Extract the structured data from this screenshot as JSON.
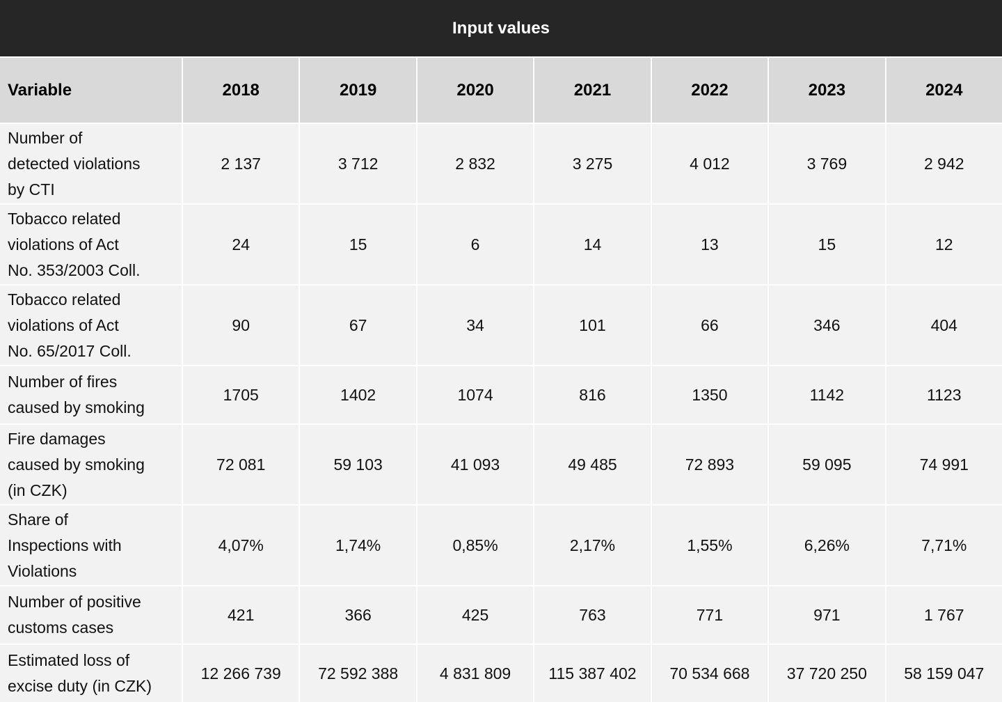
{
  "title": "Input values",
  "colors": {
    "title_bar_bg": "#262626",
    "title_text": "#ffffff",
    "header_bg": "#d9d9d9",
    "row_bg": "#f2f2f2",
    "grid_line": "#ffffff"
  },
  "table": {
    "variable_header": "Variable",
    "year_headers": [
      "2018",
      "2019",
      "2020",
      "2021",
      "2022",
      "2023",
      "2024"
    ],
    "rows": [
      {
        "label": "Number of\ndetected violations\nby CTI",
        "values": [
          "2 137",
          "3 712",
          "2 832",
          "3 275",
          "4 012",
          "3 769",
          "2 942"
        ]
      },
      {
        "label": "Tobacco related\nviolations of Act\nNo. 353/2003 Coll.",
        "values": [
          "24",
          "15",
          "6",
          "14",
          "13",
          "15",
          "12"
        ]
      },
      {
        "label": "Tobacco related\nviolations of Act\nNo. 65/2017 Coll.",
        "values": [
          "90",
          "67",
          "34",
          "101",
          "66",
          "346",
          "404"
        ]
      },
      {
        "label": "Number of fires\ncaused by smoking",
        "values": [
          "1705",
          "1402",
          "1074",
          "816",
          "1350",
          "1142",
          "1123"
        ]
      },
      {
        "label": "Fire damages\ncaused by smoking\n(in CZK)",
        "values": [
          "72 081",
          "59 103",
          "41 093",
          "49 485",
          "72 893",
          "59 095",
          "74 991"
        ]
      },
      {
        "label": "Share of\nInspections with\nViolations",
        "values": [
          "4,07%",
          "1,74%",
          "0,85%",
          "2,17%",
          "1,55%",
          "6,26%",
          "7,71%"
        ]
      },
      {
        "label": "Number of positive\ncustoms cases",
        "values": [
          "421",
          "366",
          "425",
          "763",
          "771",
          "971",
          "1 767"
        ]
      },
      {
        "label": "Estimated loss of\nexcise duty (in CZK)",
        "values": [
          "12 266 739",
          "72 592 388",
          "4 831 809",
          "115 387 402",
          "70 534 668",
          "37 720 250",
          "58 159 047"
        ]
      }
    ]
  },
  "chart_data": {
    "type": "table",
    "title": "Input values",
    "columns": [
      "Variable",
      "2018",
      "2019",
      "2020",
      "2021",
      "2022",
      "2023",
      "2024"
    ],
    "rows": [
      {
        "variable": "Number of detected violations by CTI",
        "values": [
          2137,
          3712,
          2832,
          3275,
          4012,
          3769,
          2942
        ]
      },
      {
        "variable": "Tobacco related violations of Act No. 353/2003 Coll.",
        "values": [
          24,
          15,
          6,
          14,
          13,
          15,
          12
        ]
      },
      {
        "variable": "Tobacco related violations of Act No. 65/2017 Coll.",
        "values": [
          90,
          67,
          34,
          101,
          66,
          346,
          404
        ]
      },
      {
        "variable": "Number of fires caused by smoking",
        "values": [
          1705,
          1402,
          1074,
          816,
          1350,
          1142,
          1123
        ]
      },
      {
        "variable": "Fire damages caused by smoking (in CZK)",
        "values": [
          72081,
          59103,
          41093,
          49485,
          72893,
          59095,
          74991
        ]
      },
      {
        "variable": "Share of Inspections with Violations",
        "unit": "%",
        "values": [
          4.07,
          1.74,
          0.85,
          2.17,
          1.55,
          6.26,
          7.71
        ]
      },
      {
        "variable": "Number of positive customs cases",
        "values": [
          421,
          366,
          425,
          763,
          771,
          971,
          1767
        ]
      },
      {
        "variable": "Estimated loss of excise duty (in CZK)",
        "values": [
          12266739,
          72592388,
          4831809,
          115387402,
          70534668,
          37720250,
          58159047
        ]
      }
    ]
  }
}
